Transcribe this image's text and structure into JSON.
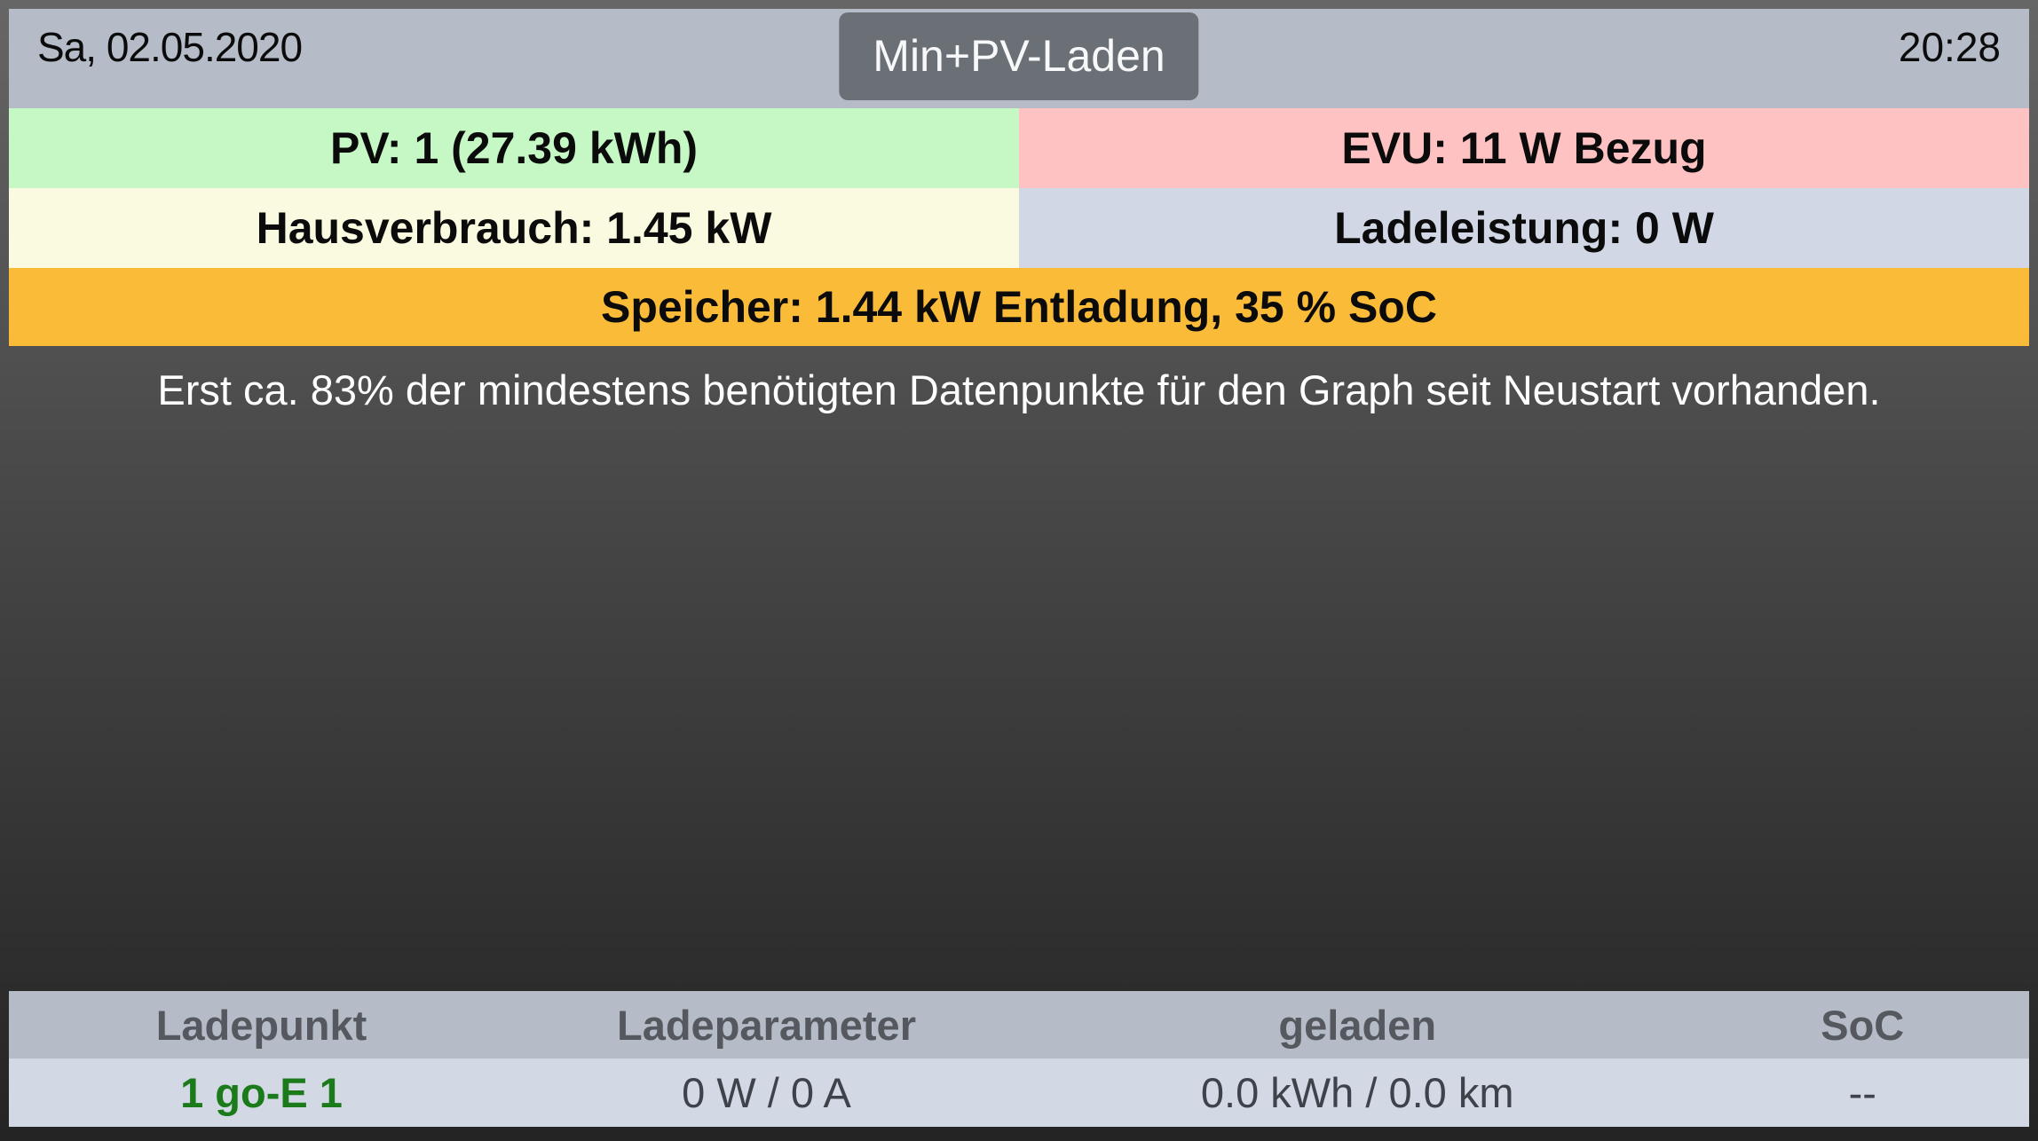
{
  "header": {
    "date": "Sa, 02.05.2020",
    "mode_button": "Min+PV-Laden",
    "time": "20:28"
  },
  "tiles": {
    "pv": {
      "text": "PV: 1 (27.39 kWh)",
      "bg": "#c5f8c5"
    },
    "evu": {
      "text": "EVU: 11 W Bezug",
      "bg": "#ffc2c2"
    },
    "hausverbrauch": {
      "text": "Hausverbrauch: 1.45 kW",
      "bg": "#fafae1"
    },
    "ladeleistung": {
      "text": "Ladeleistung: 0 W",
      "bg": "#d2d7e6"
    },
    "speicher": {
      "text": "Speicher: 1.44 kW Entladung, 35 % SoC",
      "bg": "#fabb38"
    }
  },
  "graph": {
    "notice": "Erst ca. 83% der mindestens benötigten Datenpunkte für den Graph seit Neustart vorhanden."
  },
  "table": {
    "headers": [
      "Ladepunkt",
      "Ladeparameter",
      "geladen",
      "SoC"
    ],
    "rows": [
      {
        "ladepunkt": "1 go-E 1",
        "ladeparameter": "0 W / 0 A",
        "geladen": "0.0 kWh / 0.0 km",
        "soc": "--"
      }
    ]
  },
  "colors": {
    "topbar_bg": "#b5bbc7",
    "mode_button_bg": "#6b7077",
    "pv_green": "#c5f8c5",
    "evu_red": "#ffc2c2",
    "haus_yellow": "#fafae1",
    "ladeleistung_lavender": "#d2d7e6",
    "speicher_orange": "#fabb38",
    "table_header_bg": "#b5bbc7",
    "table_row_bg": "#d3d8e5",
    "chargepoint_green": "#1b7b1b",
    "notice_text": "#ffffff",
    "background_gradient_top": "#666666",
    "background_gradient_bottom": "#242424"
  }
}
